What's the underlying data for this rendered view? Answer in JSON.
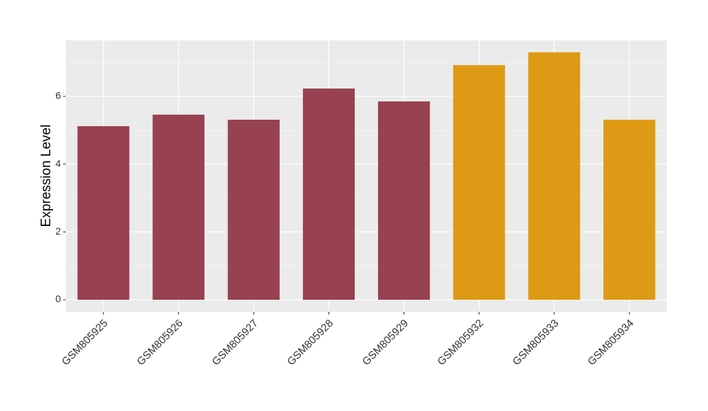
{
  "chart_data": {
    "type": "bar",
    "y_label": "Expression Level",
    "categories": [
      "GSM805925",
      "GSM805926",
      "GSM805927",
      "GSM805928",
      "GSM805929",
      "GSM805932",
      "GSM805933",
      "GSM805934"
    ],
    "values": [
      5.12,
      5.46,
      5.31,
      6.23,
      5.85,
      6.92,
      7.3,
      5.31
    ],
    "colors": [
      "#984150",
      "#984150",
      "#984150",
      "#984150",
      "#984150",
      "#de9a14",
      "#de9a14",
      "#de9a14"
    ],
    "ylim": [
      -0.355,
      7.65
    ],
    "yticks": [
      0,
      2,
      4,
      6
    ],
    "grid": true
  }
}
